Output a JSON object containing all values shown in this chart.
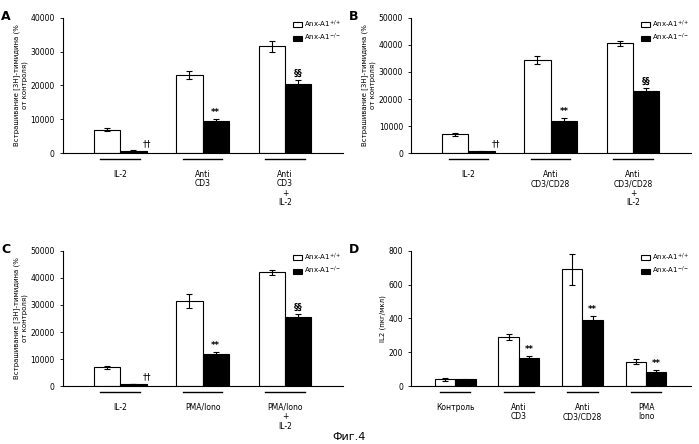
{
  "panel_A": {
    "label": "A",
    "groups": [
      "IL-2",
      "Anti\nCD3",
      "Anti\nCD3\n+\nIL-2"
    ],
    "white_vals": [
      7000,
      23000,
      31500
    ],
    "black_vals": [
      800,
      9500,
      20500
    ],
    "white_err": [
      500,
      1200,
      1500
    ],
    "black_err": [
      150,
      700,
      1200
    ],
    "ylim": [
      0,
      40000
    ],
    "yticks": [
      0,
      10000,
      20000,
      30000,
      40000
    ],
    "ylabel": "Встрашивание [3H]-тимидина (%\nот контроля)",
    "annotations_black": [
      "††",
      "**",
      "§§"
    ],
    "ann_on_white": [
      false,
      false,
      false
    ]
  },
  "panel_B": {
    "label": "B",
    "groups": [
      "IL-2",
      "Anti\nCD3/CD28",
      "Anti\nCD3/CD28\n+\nIL-2"
    ],
    "white_vals": [
      7000,
      34500,
      40500
    ],
    "black_vals": [
      800,
      12000,
      23000
    ],
    "white_err": [
      500,
      1500,
      800
    ],
    "black_err": [
      150,
      1000,
      1200
    ],
    "ylim": [
      0,
      50000
    ],
    "yticks": [
      0,
      10000,
      20000,
      30000,
      40000,
      50000
    ],
    "ylabel": "Встрашивание [3H]-тимидина (%\nот контроля)",
    "annotations_black": [
      "††",
      "**",
      "§§"
    ],
    "ann_on_white": [
      false,
      false,
      false
    ]
  },
  "panel_C": {
    "label": "C",
    "groups": [
      "IL-2",
      "PMA/Iono",
      "PMA/Iono\n+\nIL-2"
    ],
    "white_vals": [
      7000,
      31500,
      42000
    ],
    "black_vals": [
      800,
      12000,
      25500
    ],
    "white_err": [
      500,
      2500,
      1000
    ],
    "black_err": [
      150,
      700,
      1200
    ],
    "ylim": [
      0,
      50000
    ],
    "yticks": [
      0,
      10000,
      20000,
      30000,
      40000,
      50000
    ],
    "ylabel": "Встрашивание [3H]-тимидина (%\nот контроля)",
    "annotations_black": [
      "††",
      "**",
      "§§"
    ],
    "ann_on_white": [
      false,
      false,
      false
    ]
  },
  "panel_D": {
    "label": "D",
    "groups": [
      "Контроль",
      "Anti\nCD3",
      "Anti\nCD3/CD28",
      "PMA\nIono"
    ],
    "white_vals": [
      40,
      290,
      690,
      145
    ],
    "black_vals": [
      40,
      165,
      390,
      85
    ],
    "white_err": [
      8,
      20,
      90,
      15
    ],
    "black_err": [
      5,
      15,
      25,
      8
    ],
    "ylim": [
      0,
      800
    ],
    "yticks": [
      0,
      200,
      400,
      600,
      800
    ],
    "ylabel": "IL2 (пкг/мкл)",
    "annotations_black": [
      "",
      "**",
      "**",
      "**"
    ],
    "ann_on_white": [
      false,
      false,
      false,
      false
    ]
  },
  "legend_white_A": "Anx-A1⁺/+",
  "legend_black_A": "Anx-A1⁻",
  "legend_white": "Anx-A1+/+",
  "legend_black": "Anx-A1-/-",
  "figure_label": "Фиг.4",
  "bar_width": 0.32,
  "white_color": "white",
  "black_color": "black",
  "edge_color": "black"
}
